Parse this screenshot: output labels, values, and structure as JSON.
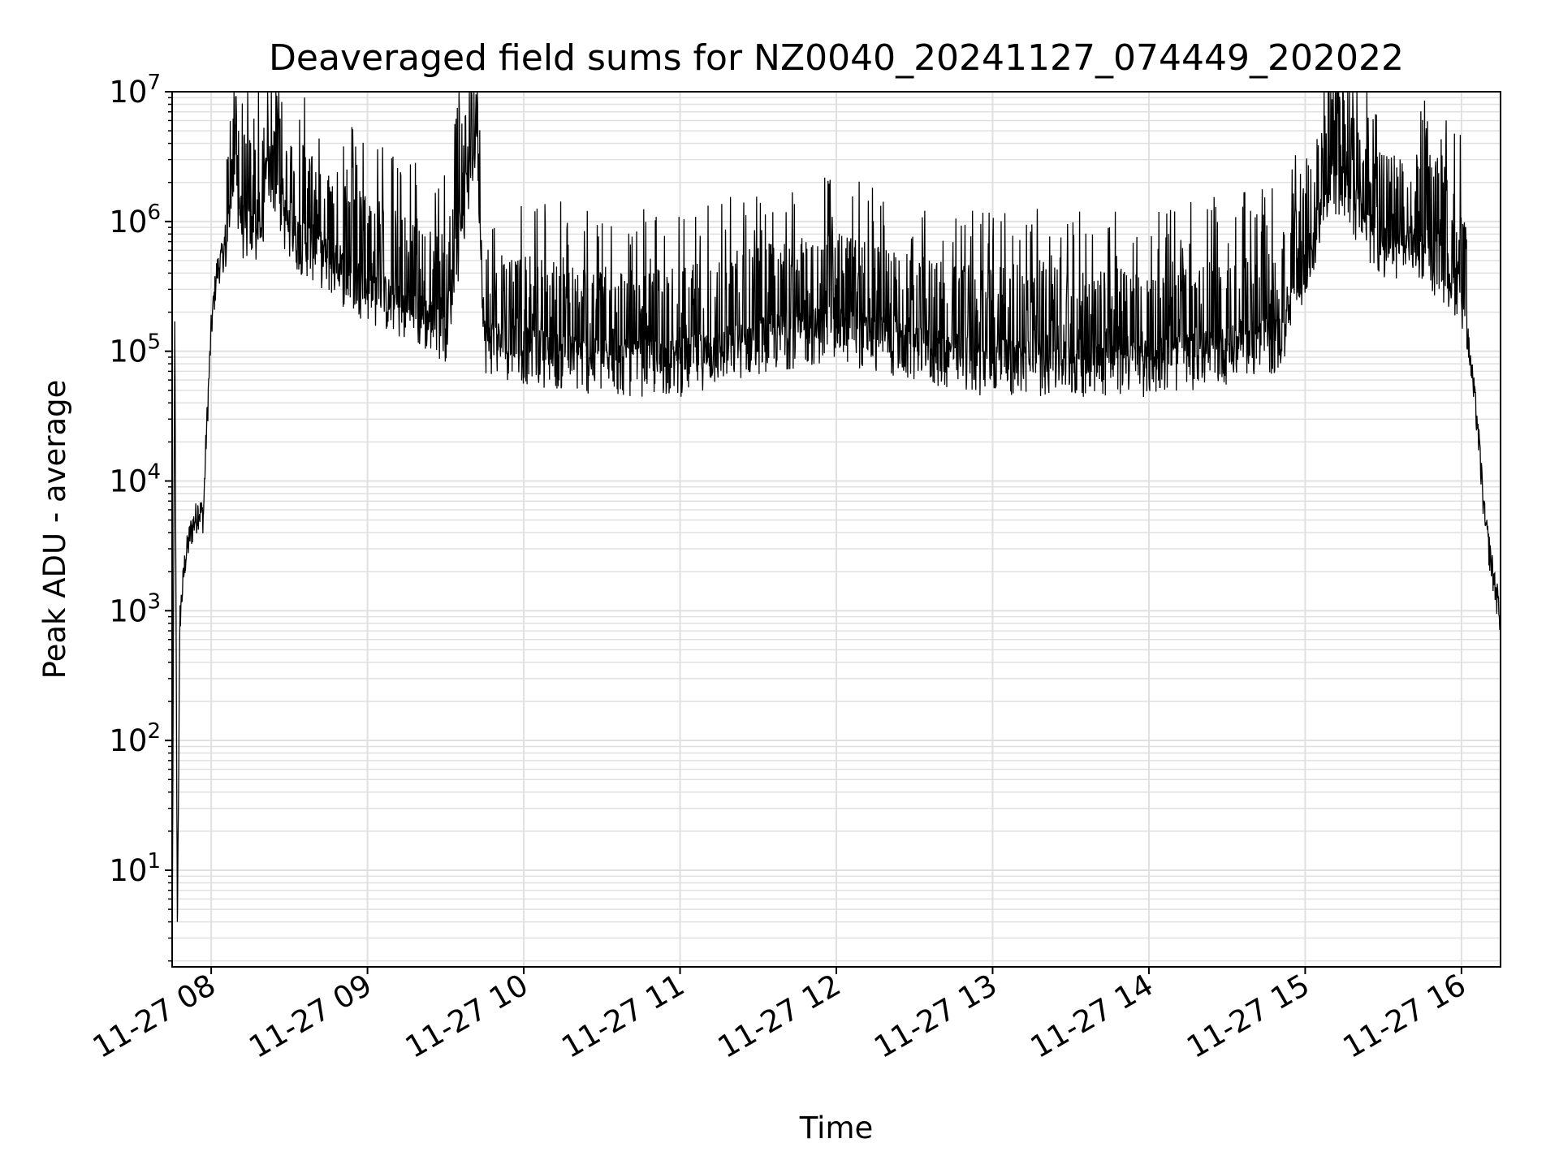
{
  "chart_data": {
    "type": "line",
    "title": "Deaveraged field sums for NZ0040_20241127_074449_202022",
    "xlabel": "Time",
    "ylabel": "Peak ADU - average",
    "yscale": "log",
    "ylim": [
      1.8,
      10000000
    ],
    "xlim": [
      "2024-11-27 07:45",
      "2024-11-27 16:15"
    ],
    "grid": true,
    "line_color": "#000000",
    "grid_color": "#e0e0e0",
    "x_ticks": [
      {
        "value": "2024-11-27 08:00",
        "label": "11-27 08"
      },
      {
        "value": "2024-11-27 09:00",
        "label": "11-27 09"
      },
      {
        "value": "2024-11-27 10:00",
        "label": "11-27 10"
      },
      {
        "value": "2024-11-27 11:00",
        "label": "11-27 11"
      },
      {
        "value": "2024-11-27 12:00",
        "label": "11-27 12"
      },
      {
        "value": "2024-11-27 13:00",
        "label": "11-27 13"
      },
      {
        "value": "2024-11-27 14:00",
        "label": "11-27 14"
      },
      {
        "value": "2024-11-27 15:00",
        "label": "11-27 15"
      },
      {
        "value": "2024-11-27 16:00",
        "label": "11-27 16"
      }
    ],
    "y_ticks": [
      {
        "value": 10,
        "base": "10",
        "exp": "1"
      },
      {
        "value": 100,
        "base": "10",
        "exp": "2"
      },
      {
        "value": 1000,
        "base": "10",
        "exp": "3"
      },
      {
        "value": 10000,
        "base": "10",
        "exp": "4"
      },
      {
        "value": 100000,
        "base": "10",
        "exp": "5"
      },
      {
        "value": 1000000,
        "base": "10",
        "exp": "6"
      },
      {
        "value": 10000000,
        "base": "10",
        "exp": "7"
      }
    ],
    "series": [
      {
        "points": [
          [
            "2024-11-27 07:45",
            2
          ],
          [
            "2024-11-27 07:46",
            170000
          ],
          [
            "2024-11-27 07:47",
            4
          ],
          [
            "2024-11-27 07:48",
            900
          ],
          [
            "2024-11-27 07:50",
            2500
          ],
          [
            "2024-11-27 07:52",
            4000
          ],
          [
            "2024-11-27 07:55",
            6000
          ],
          [
            "2024-11-27 07:57",
            5500
          ],
          [
            "2024-11-27 07:58",
            20000
          ],
          [
            "2024-11-27 08:00",
            150000
          ],
          [
            "2024-11-27 08:02",
            400000
          ],
          [
            "2024-11-27 08:06",
            700000
          ],
          [
            "2024-11-27 08:09",
            2300000
          ],
          [
            "2024-11-27 08:12",
            900000
          ],
          [
            "2024-11-27 08:20",
            700000
          ],
          [
            "2024-11-27 08:21",
            3100000
          ],
          [
            "2024-11-27 08:30",
            800000
          ],
          [
            "2024-11-27 08:40",
            600000
          ],
          [
            "2024-11-27 08:50",
            400000
          ],
          [
            "2024-11-27 09:00",
            300000
          ],
          [
            "2024-11-27 09:15",
            200000
          ],
          [
            "2024-11-27 09:30",
            150000
          ],
          [
            "2024-11-27 09:42",
            5000000
          ],
          [
            "2024-11-27 09:45",
            120000
          ],
          [
            "2024-11-27 10:00",
            100000
          ],
          [
            "2024-11-27 10:30",
            80000
          ],
          [
            "2024-11-27 11:00",
            80000
          ],
          [
            "2024-11-27 11:30",
            120000
          ],
          [
            "2024-11-27 12:00",
            150000
          ],
          [
            "2024-11-27 12:30",
            100000
          ],
          [
            "2024-11-27 13:00",
            80000
          ],
          [
            "2024-11-27 13:30",
            80000
          ],
          [
            "2024-11-27 14:00",
            80000
          ],
          [
            "2024-11-27 14:30",
            100000
          ],
          [
            "2024-11-27 14:50",
            120000
          ],
          [
            "2024-11-27 15:00",
            400000
          ],
          [
            "2024-11-27 15:10",
            2300000
          ],
          [
            "2024-11-27 15:30",
            600000
          ],
          [
            "2024-11-27 15:45",
            600000
          ],
          [
            "2024-11-27 16:00",
            300000
          ],
          [
            "2024-11-27 16:03",
            100000
          ],
          [
            "2024-11-27 16:06",
            30000
          ],
          [
            "2024-11-27 16:09",
            5000
          ],
          [
            "2024-11-27 16:12",
            2000
          ],
          [
            "2024-11-27 16:15",
            900
          ]
        ]
      }
    ]
  }
}
